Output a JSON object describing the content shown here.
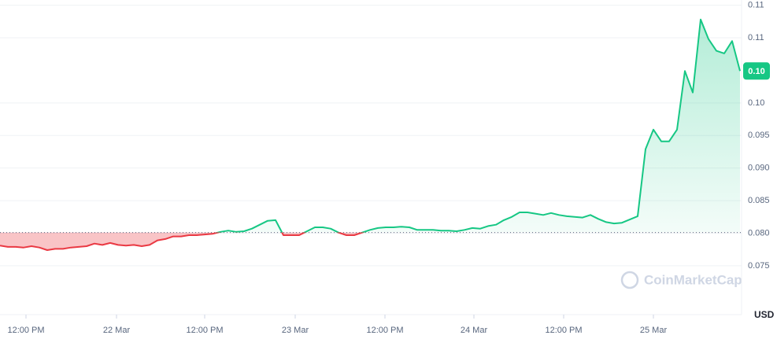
{
  "chart_data": {
    "type": "line",
    "series": [
      {
        "color": "#16c784",
        "values": [
          0.0781,
          0.0779,
          0.0779,
          0.0778,
          0.078,
          0.0778,
          0.0774,
          0.0776,
          0.0776,
          0.0778,
          0.0779,
          0.078,
          0.0784,
          0.0782,
          0.0785,
          0.0782,
          0.0781,
          0.0782,
          0.078,
          0.0782,
          0.0789,
          0.0791,
          0.0795,
          0.0795,
          0.0797,
          0.0797,
          0.0798,
          0.0799,
          0.0802,
          0.0804,
          0.0802,
          0.0803,
          0.0807,
          0.0813,
          0.0819,
          0.082,
          0.0797,
          0.0797,
          0.0797,
          0.0803,
          0.0809,
          0.0809,
          0.0807,
          0.0801,
          0.0797,
          0.0797,
          0.0801,
          0.0805,
          0.0808,
          0.0809,
          0.0809,
          0.081,
          0.0809,
          0.0805,
          0.0805,
          0.0805,
          0.0804,
          0.0804,
          0.0803,
          0.0805,
          0.0808,
          0.0807,
          0.0811,
          0.0813,
          0.082,
          0.0825,
          0.0832,
          0.0832,
          0.083,
          0.0828,
          0.0831,
          0.0828,
          0.0826,
          0.0825,
          0.0824,
          0.0828,
          0.0822,
          0.0817,
          0.0815,
          0.0816,
          0.0821,
          0.0826,
          0.0929,
          0.0959,
          0.0941,
          0.0941,
          0.0959,
          0.1049,
          0.1016,
          0.1128,
          0.1098,
          0.108,
          0.1076,
          0.1095,
          0.1049
        ]
      }
    ],
    "down_color": "#ea3943",
    "baseline": 0.0801,
    "xlim": [
      0,
      94
    ],
    "xticks": [
      {
        "value": 3.3,
        "label": "12:00 PM"
      },
      {
        "value": 14.8,
        "label": "22 Mar"
      },
      {
        "value": 26,
        "label": "12:00 PM"
      },
      {
        "value": 37.5,
        "label": "23 Mar"
      },
      {
        "value": 48.9,
        "label": "12:00 PM"
      },
      {
        "value": 60.2,
        "label": "24 Mar"
      },
      {
        "value": 71.6,
        "label": "12:00 PM"
      },
      {
        "value": 83,
        "label": "25 Mar"
      }
    ],
    "ylim": [
      0.0675,
      0.1158
    ],
    "yticks": [
      {
        "value": 0.115,
        "label": "0.11"
      },
      {
        "value": 0.11,
        "label": "0.11"
      },
      {
        "value": 0.1,
        "label": "0.10"
      },
      0.095,
      {
        "value": 0.09,
        "label": "0.090"
      },
      0.085,
      {
        "value": 0.08,
        "label": "0.080"
      },
      0.075
    ],
    "current_price": {
      "value": 0.1049,
      "label": "0.10"
    },
    "currency": "USD",
    "watermark": "CoinMarketCap",
    "grid": true
  }
}
